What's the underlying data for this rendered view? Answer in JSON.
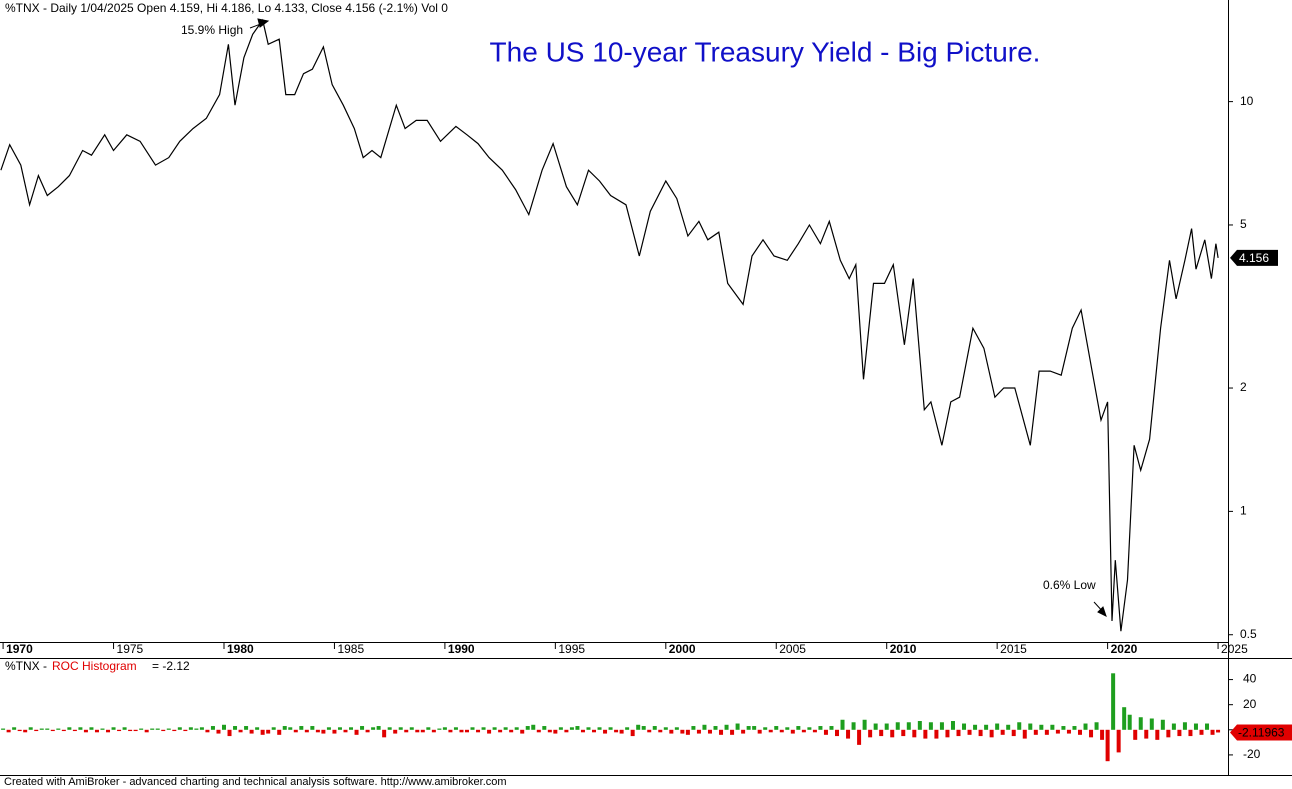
{
  "header": "%TNX - Daily 1/04/2025 Open 4.159, Hi 4.186, Lo 4.133, Close 4.156 (-2.1%) Vol 0",
  "footer": "Created with AmiBroker - advanced charting and technical analysis software. http://www.amibroker.com",
  "chart_data": [
    {
      "type": "line",
      "title": "The US 10-year Treasury Yield - Big Picture.",
      "log_scale": true,
      "xlim": [
        1969.86,
        2025.45
      ],
      "xticks": [
        1970,
        1975,
        1980,
        1985,
        1990,
        1995,
        2000,
        2005,
        2010,
        2015,
        2020,
        2025
      ],
      "ylim": [
        0.48,
        17.7
      ],
      "yticks": [
        0.5,
        1,
        2,
        5,
        10
      ],
      "last_value": 4.156,
      "annotations": [
        "15.9% High",
        "0.6% Low"
      ],
      "series": [
        {
          "name": "%TNX",
          "color": "#000000",
          "x": [
            1969.9,
            1970.3,
            1970.8,
            1971.2,
            1971.6,
            1972.0,
            1972.5,
            1973.0,
            1973.6,
            1974.0,
            1974.6,
            1975.0,
            1975.6,
            1976.2,
            1976.9,
            1977.5,
            1978.0,
            1978.6,
            1979.2,
            1979.8,
            1980.2,
            1980.5,
            1980.9,
            1981.3,
            1981.75,
            1982.0,
            1982.5,
            1982.8,
            1983.2,
            1983.6,
            1984.0,
            1984.5,
            1984.9,
            1985.4,
            1985.9,
            1986.3,
            1986.7,
            1987.1,
            1987.8,
            1988.2,
            1988.7,
            1989.2,
            1989.8,
            1990.5,
            1991.0,
            1991.5,
            1992.0,
            1992.6,
            1993.2,
            1993.8,
            1994.4,
            1994.9,
            1995.5,
            1996.0,
            1996.5,
            1997.0,
            1997.5,
            1998.2,
            1998.8,
            1999.3,
            2000.0,
            2000.5,
            2001.0,
            2001.5,
            2001.9,
            2002.4,
            2002.8,
            2003.5,
            2003.9,
            2004.4,
            2004.9,
            2005.5,
            2006.0,
            2006.5,
            2007.0,
            2007.4,
            2007.9,
            2008.3,
            2008.6,
            2008.95,
            2009.4,
            2009.9,
            2010.3,
            2010.8,
            2011.2,
            2011.7,
            2012.0,
            2012.5,
            2012.9,
            2013.3,
            2013.9,
            2014.4,
            2014.9,
            2015.3,
            2015.8,
            2016.5,
            2016.9,
            2017.4,
            2017.9,
            2018.4,
            2018.8,
            2019.3,
            2019.7,
            2020.0,
            2020.2,
            2020.35,
            2020.6,
            2020.9,
            2021.2,
            2021.5,
            2021.9,
            2022.4,
            2022.8,
            2023.1,
            2023.5,
            2023.8,
            2024.0,
            2024.4,
            2024.7,
            2024.9,
            2025.0
          ],
          "values": [
            6.8,
            7.85,
            7.0,
            5.6,
            6.6,
            5.9,
            6.2,
            6.6,
            7.6,
            7.4,
            8.3,
            7.6,
            8.3,
            8.0,
            7.0,
            7.3,
            8.0,
            8.6,
            9.1,
            10.4,
            13.8,
            9.8,
            12.8,
            14.6,
            15.8,
            13.8,
            14.2,
            10.4,
            10.4,
            11.7,
            12.0,
            13.6,
            11.0,
            9.8,
            8.6,
            7.3,
            7.6,
            7.3,
            9.8,
            8.6,
            9.0,
            9.0,
            8.0,
            8.7,
            8.3,
            7.9,
            7.3,
            6.8,
            6.1,
            5.3,
            6.8,
            7.9,
            6.2,
            5.6,
            6.8,
            6.4,
            5.9,
            5.6,
            4.2,
            5.4,
            6.4,
            5.8,
            4.7,
            5.1,
            4.6,
            4.8,
            3.6,
            3.2,
            4.2,
            4.6,
            4.2,
            4.1,
            4.5,
            5.0,
            4.5,
            5.1,
            4.1,
            3.7,
            4.0,
            2.1,
            3.6,
            3.6,
            4.0,
            2.55,
            3.7,
            1.77,
            1.85,
            1.45,
            1.85,
            1.9,
            2.8,
            2.5,
            1.9,
            2.0,
            2.0,
            1.45,
            2.2,
            2.2,
            2.15,
            2.8,
            3.1,
            2.2,
            1.67,
            1.85,
            0.54,
            0.76,
            0.51,
            0.68,
            1.45,
            1.26,
            1.5,
            2.8,
            4.1,
            3.3,
            4.1,
            4.9,
            3.9,
            4.6,
            3.7,
            4.5,
            4.156
          ]
        }
      ]
    },
    {
      "type": "bar",
      "title_prefix": "%TNX -",
      "title": "ROC Histogram",
      "value_text": "= -2.12",
      "xlim": [
        1969.86,
        2025.45
      ],
      "ylim": [
        -36,
        54
      ],
      "yticks": [
        -20,
        0,
        20,
        40
      ],
      "last_value": -2.11963,
      "positive_color": "#1e9e1e",
      "negative_color": "#e00000",
      "x": [
        1970,
        1970.25,
        1970.5,
        1970.75,
        1971,
        1971.25,
        1971.5,
        1971.75,
        1972,
        1972.25,
        1972.5,
        1972.75,
        1973,
        1973.25,
        1973.5,
        1973.75,
        1974,
        1974.25,
        1974.5,
        1974.75,
        1975,
        1975.25,
        1975.5,
        1975.75,
        1976,
        1976.25,
        1976.5,
        1976.75,
        1977,
        1977.25,
        1977.5,
        1977.75,
        1978,
        1978.25,
        1978.5,
        1978.75,
        1979,
        1979.25,
        1979.5,
        1979.75,
        1980,
        1980.25,
        1980.5,
        1980.75,
        1981,
        1981.25,
        1981.5,
        1981.75,
        1982,
        1982.25,
        1982.5,
        1982.75,
        1983,
        1983.25,
        1983.5,
        1983.75,
        1984,
        1984.25,
        1984.5,
        1984.75,
        1985,
        1985.25,
        1985.5,
        1985.75,
        1986,
        1986.25,
        1986.5,
        1986.75,
        1987,
        1987.25,
        1987.5,
        1987.75,
        1988,
        1988.25,
        1988.5,
        1988.75,
        1989,
        1989.25,
        1989.5,
        1989.75,
        1990,
        1990.25,
        1990.5,
        1990.75,
        1991,
        1991.25,
        1991.5,
        1991.75,
        1992,
        1992.25,
        1992.5,
        1992.75,
        1993,
        1993.25,
        1993.5,
        1993.75,
        1994,
        1994.25,
        1994.5,
        1994.75,
        1995,
        1995.25,
        1995.5,
        1995.75,
        1996,
        1996.25,
        1996.5,
        1996.75,
        1997,
        1997.25,
        1997.5,
        1997.75,
        1998,
        1998.25,
        1998.5,
        1998.75,
        1999,
        1999.25,
        1999.5,
        1999.75,
        2000,
        2000.25,
        2000.5,
        2000.75,
        2001,
        2001.25,
        2001.5,
        2001.75,
        2002,
        2002.25,
        2002.5,
        2002.75,
        2003,
        2003.25,
        2003.5,
        2003.75,
        2004,
        2004.25,
        2004.5,
        2004.75,
        2005,
        2005.25,
        2005.5,
        2005.75,
        2006,
        2006.25,
        2006.5,
        2006.75,
        2007,
        2007.25,
        2007.5,
        2007.75,
        2008,
        2008.25,
        2008.5,
        2008.75,
        2009,
        2009.25,
        2009.5,
        2009.75,
        2010,
        2010.25,
        2010.5,
        2010.75,
        2011,
        2011.25,
        2011.5,
        2011.75,
        2012,
        2012.25,
        2012.5,
        2012.75,
        2013,
        2013.25,
        2013.5,
        2013.75,
        2014,
        2014.25,
        2014.5,
        2014.75,
        2015,
        2015.25,
        2015.5,
        2015.75,
        2016,
        2016.25,
        2016.5,
        2016.75,
        2017,
        2017.25,
        2017.5,
        2017.75,
        2018,
        2018.25,
        2018.5,
        2018.75,
        2019,
        2019.25,
        2019.5,
        2019.75,
        2020,
        2020.25,
        2020.5,
        2020.75,
        2021,
        2021.25,
        2021.5,
        2021.75,
        2022,
        2022.25,
        2022.5,
        2022.75,
        2023,
        2023.25,
        2023.5,
        2023.75,
        2024,
        2024.25,
        2024.5,
        2024.75,
        2025
      ],
      "values": [
        1,
        -2,
        2,
        -1,
        -2,
        2,
        -1,
        1,
        1,
        -1,
        1,
        -1,
        2,
        -1,
        2,
        -2,
        2,
        -2,
        1,
        -2,
        2,
        -1,
        2,
        -1,
        -1,
        1,
        -2,
        1,
        1,
        -1,
        1,
        -1,
        2,
        -1,
        2,
        1,
        2,
        -2,
        3,
        -3,
        4,
        -5,
        3,
        -2,
        3,
        -3,
        2,
        -4,
        -3,
        2,
        -4,
        3,
        2,
        -2,
        3,
        -2,
        3,
        -2,
        -3,
        2,
        -3,
        2,
        -2,
        2,
        -4,
        3,
        -2,
        2,
        3,
        -6,
        2,
        -3,
        2,
        -2,
        2,
        -2,
        -2,
        2,
        -2,
        1,
        2,
        -2,
        2,
        -2,
        -2,
        2,
        -2,
        2,
        -3,
        2,
        -2,
        2,
        -2,
        2,
        -3,
        3,
        4,
        -2,
        3,
        -2,
        -3,
        2,
        -2,
        2,
        3,
        -2,
        2,
        -2,
        2,
        -3,
        2,
        -2,
        -3,
        2,
        -5,
        4,
        3,
        -2,
        3,
        -2,
        2,
        -3,
        2,
        -3,
        -4,
        3,
        -3,
        4,
        -3,
        3,
        -4,
        4,
        -4,
        5,
        -3,
        3,
        3,
        -3,
        2,
        -2,
        3,
        -2,
        2,
        -3,
        3,
        -2,
        2,
        -2,
        3,
        -4,
        3,
        -5,
        8,
        -7,
        6,
        -12,
        8,
        -6,
        5,
        -5,
        5,
        -6,
        6,
        -5,
        6,
        -6,
        7,
        -7,
        6,
        -7,
        6,
        -6,
        7,
        -5,
        5,
        -4,
        4,
        -5,
        4,
        -6,
        5,
        -4,
        4,
        -5,
        6,
        -7,
        5,
        -4,
        4,
        -4,
        4,
        -3,
        3,
        -3,
        3,
        -4,
        5,
        -6,
        6,
        -8,
        -25,
        45,
        -18,
        18,
        12,
        -8,
        10,
        -7,
        9,
        -8,
        8,
        -6,
        5,
        -5,
        6,
        -5,
        5,
        -4,
        5,
        -4,
        -2.12
      ]
    }
  ]
}
